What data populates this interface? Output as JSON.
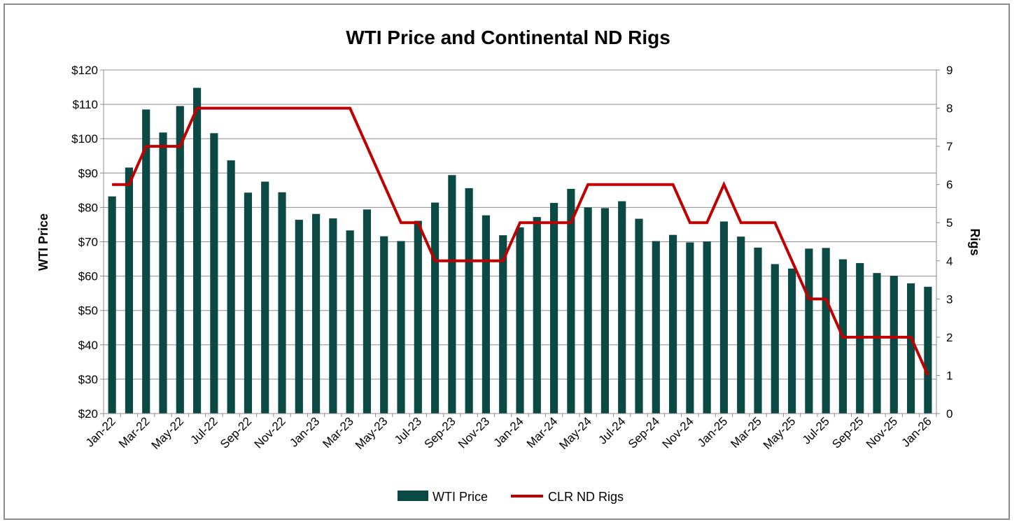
{
  "chart_data": {
    "type": "bar+line",
    "title": "WTI Price and Continental ND Rigs",
    "ylabel_left": "WTI Price",
    "ylabel_right": "Rigs",
    "ylim_left": [
      20,
      120
    ],
    "ylim_right": [
      0,
      9
    ],
    "yticks_left": [
      "$20",
      "$30",
      "$40",
      "$50",
      "$60",
      "$70",
      "$80",
      "$90",
      "$100",
      "$110",
      "$120"
    ],
    "yticks_left_values": [
      20,
      30,
      40,
      50,
      60,
      70,
      80,
      90,
      100,
      110,
      120
    ],
    "yticks_right": [
      "0",
      "1",
      "2",
      "3",
      "4",
      "5",
      "6",
      "7",
      "8",
      "9"
    ],
    "categories": [
      "Jan-22",
      "Feb-22",
      "Mar-22",
      "Apr-22",
      "May-22",
      "Jun-22",
      "Jul-22",
      "Aug-22",
      "Sep-22",
      "Oct-22",
      "Nov-22",
      "Dec-22",
      "Jan-23",
      "Feb-23",
      "Mar-23",
      "Apr-23",
      "May-23",
      "Jun-23",
      "Jul-23",
      "Aug-23",
      "Sep-23",
      "Oct-23",
      "Nov-23",
      "Dec-23",
      "Jan-24",
      "Feb-24",
      "Mar-24",
      "Apr-24",
      "May-24",
      "Jun-24",
      "Jul-24",
      "Aug-24",
      "Sep-24",
      "Oct-24",
      "Nov-24",
      "Dec-24",
      "Jan-25",
      "Feb-25",
      "Mar-25",
      "Apr-25",
      "May-25",
      "Jun-25",
      "Jul-25",
      "Aug-25",
      "Sep-25",
      "Oct-25",
      "Nov-25",
      "Dec-25",
      "Jan-26"
    ],
    "x_tick_labels": [
      "Jan-22",
      "Mar-22",
      "May-22",
      "Jul-22",
      "Sep-22",
      "Nov-22",
      "Jan-23",
      "Mar-23",
      "May-23",
      "Jul-23",
      "Sep-23",
      "Nov-23",
      "Jan-24",
      "Mar-24",
      "May-24",
      "Jul-24",
      "Sep-24",
      "Nov-24",
      "Jan-25",
      "Mar-25",
      "May-25",
      "Jul-25",
      "Sep-25",
      "Nov-25",
      "Jan-26"
    ],
    "series": [
      {
        "name": "WTI Price",
        "type": "bar",
        "axis": "left",
        "color": "#0b4a44",
        "values": [
          83.2,
          91.6,
          108.5,
          101.8,
          109.5,
          114.8,
          101.6,
          93.7,
          84.3,
          87.5,
          84.4,
          76.4,
          78.1,
          76.8,
          73.3,
          79.4,
          71.6,
          70.2,
          76.1,
          81.4,
          89.4,
          85.6,
          77.7,
          71.9,
          74.2,
          77.2,
          81.3,
          85.4,
          80.0,
          79.8,
          81.8,
          76.7,
          70.2,
          72.0,
          69.8,
          70.1,
          75.9,
          71.5,
          68.3,
          63.5,
          62.2,
          68.0,
          68.2,
          64.9,
          63.8,
          60.9,
          60.1,
          57.9,
          56.9
        ]
      },
      {
        "name": "CLR ND Rigs",
        "type": "line",
        "axis": "right",
        "color": "#c00000",
        "values": [
          6,
          6,
          7,
          7,
          7,
          8,
          8,
          8,
          8,
          8,
          8,
          8,
          8,
          8,
          8,
          7,
          6,
          5,
          5,
          4,
          4,
          4,
          4,
          4,
          5,
          5,
          5,
          5,
          6,
          6,
          6,
          6,
          6,
          6,
          5,
          5,
          6,
          5,
          5,
          5,
          4,
          3,
          3,
          2,
          2,
          2,
          2,
          2,
          1
        ]
      }
    ],
    "legend_position": "bottom-center",
    "grid": true
  }
}
